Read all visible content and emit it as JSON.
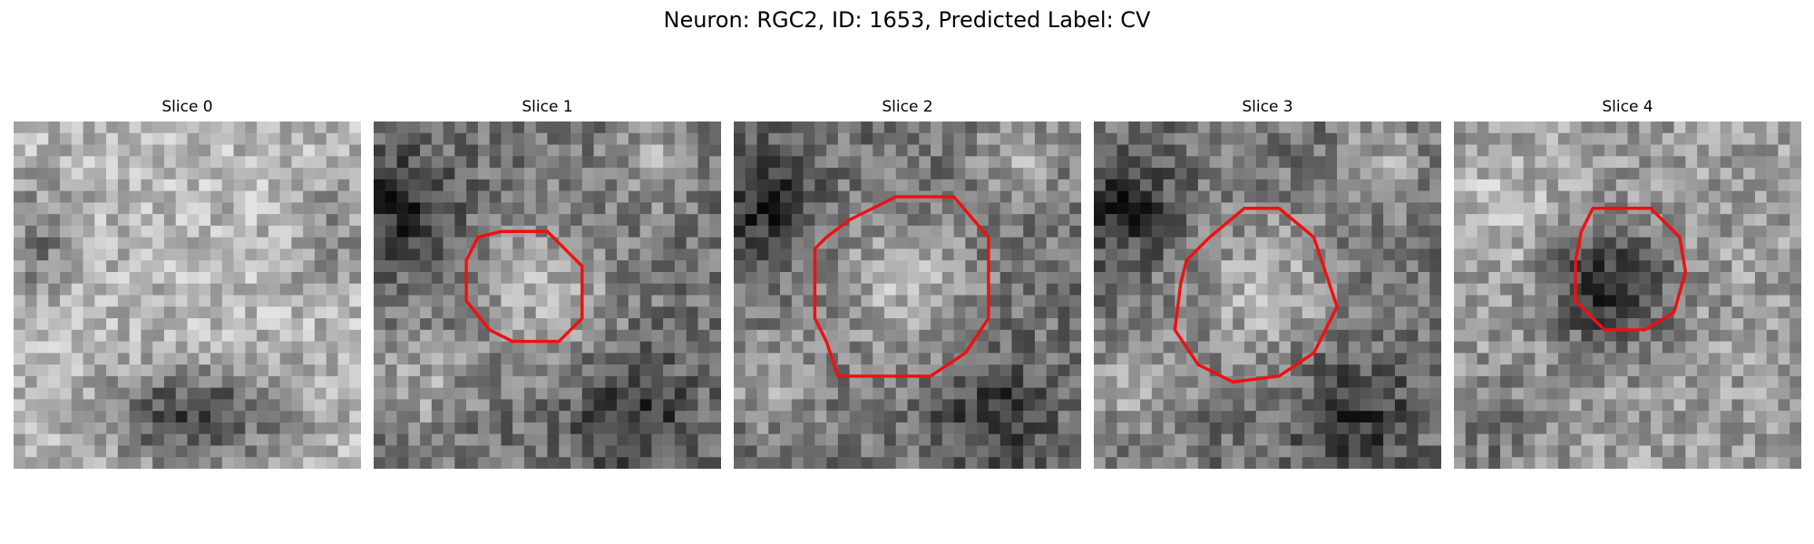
{
  "figure": {
    "title": "Neuron: RGC2, ID: 1653, Predicted Label: CV"
  },
  "panels": [
    {
      "title": "Slice 0",
      "seed": 11,
      "pattern": "bright_top_dark_bottom",
      "contour": null
    },
    {
      "title": "Slice 1",
      "seed": 23,
      "pattern": "bright_center",
      "contour": "small_octagon"
    },
    {
      "title": "Slice 2",
      "seed": 37,
      "pattern": "bright_center",
      "contour": "large_octagon"
    },
    {
      "title": "Slice 3",
      "seed": 41,
      "pattern": "bright_center",
      "contour": "large_octagon_low"
    },
    {
      "title": "Slice 4",
      "seed": 59,
      "pattern": "dark_center",
      "contour": "small_octagon_dark"
    }
  ],
  "colors": {
    "contour": "#ee1111",
    "background": "#ffffff"
  }
}
